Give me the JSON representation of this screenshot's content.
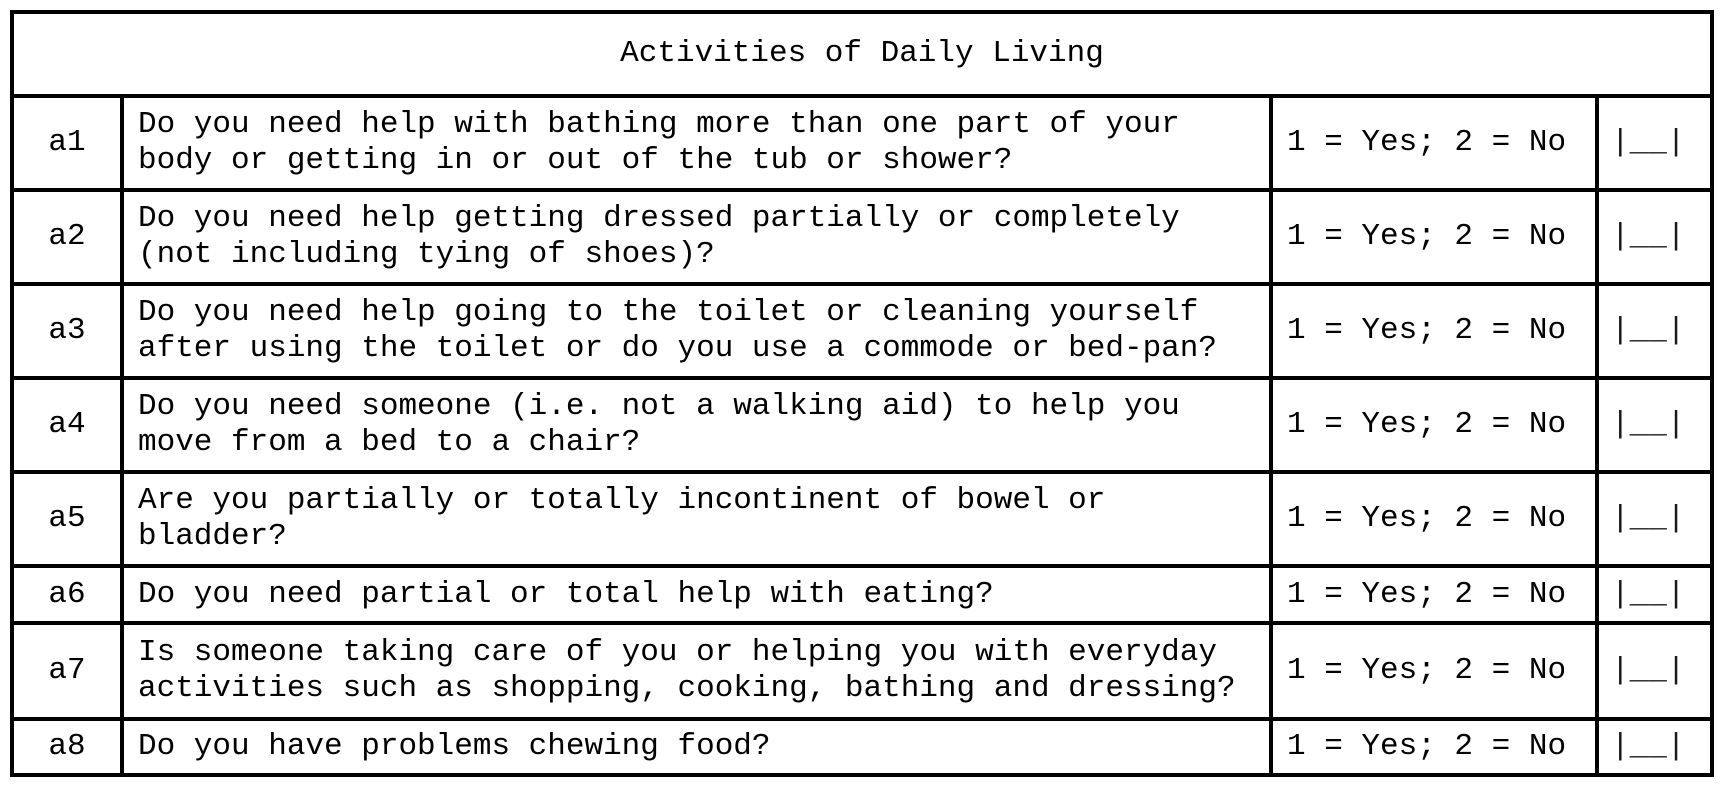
{
  "document": {
    "title": "Activities of Daily Living",
    "response_scale_label": "1 = Yes; 2 = No",
    "answer_box_label": "|__|",
    "colors": {
      "border": "#000000",
      "background": "#ffffff",
      "text": "#000000"
    },
    "rows": [
      {
        "id": "a1",
        "question": "Do you need help with bathing more than one part of your body or getting in or out of the tub or shower?"
      },
      {
        "id": "a2",
        "question": "Do you need help getting dressed partially or completely (not including tying of shoes)?"
      },
      {
        "id": "a3",
        "question": "Do you need help going to the toilet or cleaning yourself after using the toilet or do you use a commode or bed-pan?"
      },
      {
        "id": "a4",
        "question": "Do you need someone (i.e. not a walking aid) to help you move from a bed to a chair?"
      },
      {
        "id": "a5",
        "question": "Are you partially or totally incontinent of bowel or bladder?"
      },
      {
        "id": "a6",
        "question": "Do you need partial or total help with eating?"
      },
      {
        "id": "a7",
        "question": "Is someone taking care of you or helping you with everyday activities such as shopping, cooking, bathing and dressing?"
      },
      {
        "id": "a8",
        "question": "Do you have problems chewing food?"
      }
    ]
  }
}
